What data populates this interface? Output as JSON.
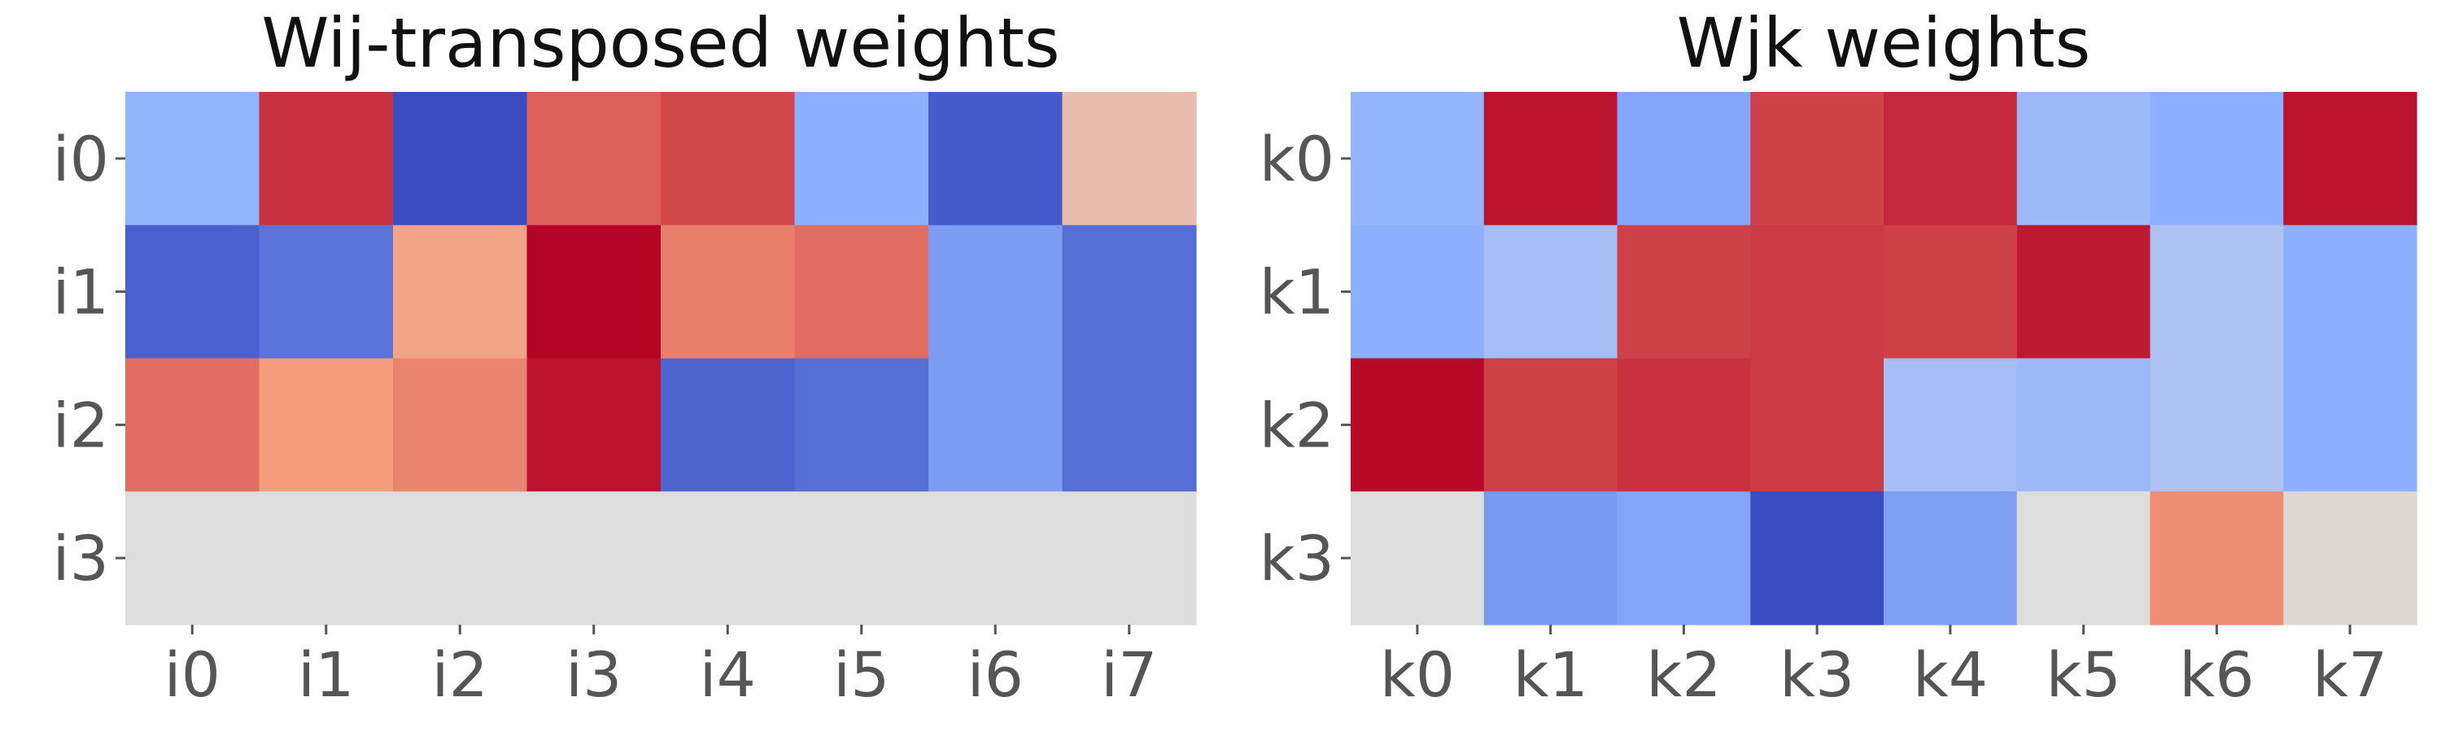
{
  "chart_data": [
    {
      "type": "heatmap",
      "title": "Wij-transposed weights",
      "colormap": "coolwarm",
      "value_range": [
        -1,
        1
      ],
      "grid": false,
      "rows": [
        "i0",
        "i1",
        "i2",
        "i3"
      ],
      "columns": [
        "i0",
        "i1",
        "i2",
        "i3",
        "i4",
        "i5",
        "i6",
        "i7"
      ],
      "values": [
        [
          -0.45,
          0.85,
          -1.0,
          0.7,
          0.78,
          -0.5,
          -0.93,
          0.25
        ],
        [
          -0.9,
          -0.8,
          0.45,
          1.0,
          0.6,
          0.65,
          -0.6,
          -0.83
        ],
        [
          0.65,
          0.5,
          0.58,
          0.95,
          -0.88,
          -0.83,
          -0.6,
          -0.83
        ],
        [
          0.0,
          0.0,
          0.0,
          0.0,
          0.0,
          0.0,
          0.0,
          0.0
        ]
      ]
    },
    {
      "type": "heatmap",
      "title": "Wjk weights",
      "colormap": "coolwarm",
      "value_range": [
        -1,
        1
      ],
      "grid": false,
      "rows": [
        "k0",
        "k1",
        "k2",
        "k3"
      ],
      "columns": [
        "k0",
        "k1",
        "k2",
        "k3",
        "k4",
        "k5",
        "k6",
        "k7"
      ],
      "values": [
        [
          -0.45,
          0.95,
          -0.55,
          0.8,
          0.88,
          -0.4,
          -0.5,
          0.95
        ],
        [
          -0.5,
          -0.35,
          0.8,
          0.82,
          0.8,
          0.93,
          -0.3,
          -0.5
        ],
        [
          0.98,
          0.8,
          0.85,
          0.82,
          -0.35,
          -0.4,
          -0.3,
          -0.5
        ],
        [
          0.0,
          -0.62,
          -0.55,
          -1.0,
          -0.58,
          0.0,
          0.55,
          0.05
        ]
      ]
    }
  ]
}
